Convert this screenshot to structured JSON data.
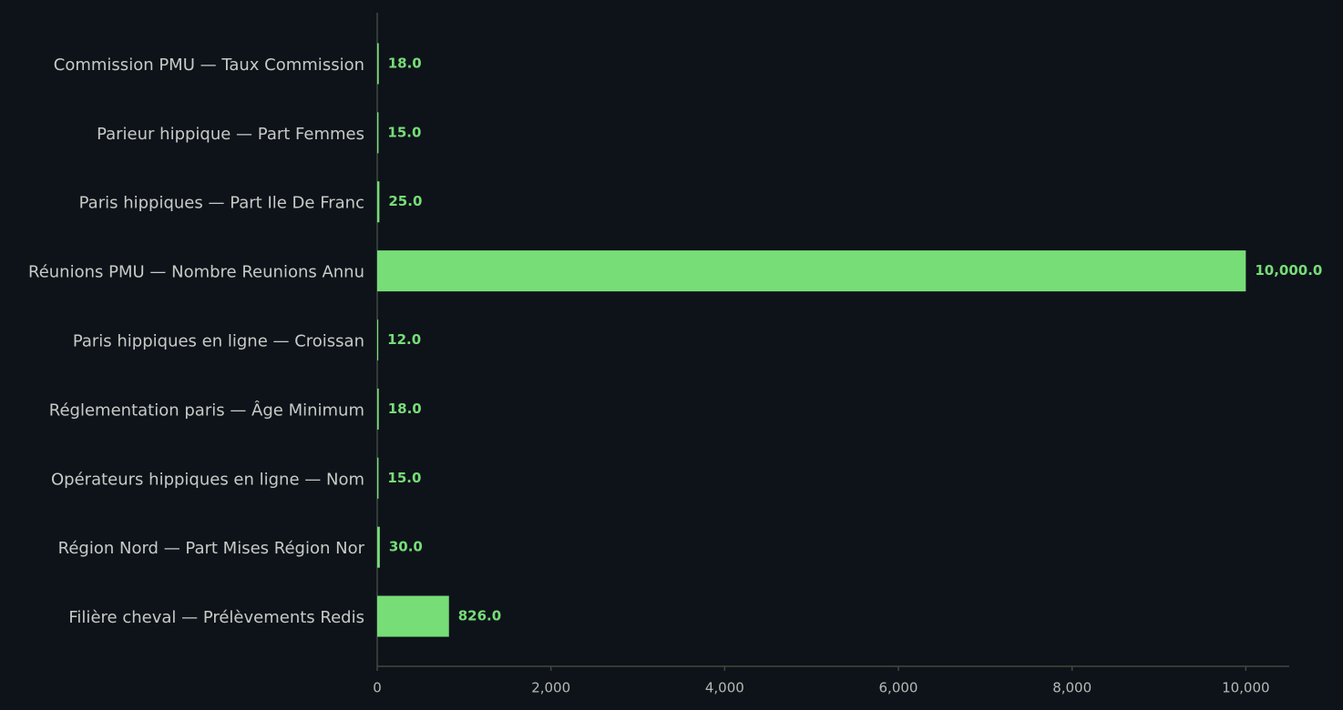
{
  "chart_data": {
    "type": "barh",
    "categories": [
      "Commission PMU — Taux Commission",
      "Parieur hippique — Part Femmes",
      "Paris hippiques — Part Ile De Franc",
      "Réunions PMU — Nombre Reunions Annu",
      "Paris hippiques en ligne — Croissan",
      "Réglementation paris — Âge Minimum",
      "Opérateurs hippiques en ligne — Nom",
      "Région Nord — Part Mises Région Nor",
      "Filière cheval — Prélèvements Redis"
    ],
    "values": [
      18,
      15,
      25,
      10000,
      12,
      18,
      15,
      30,
      826
    ],
    "value_labels": [
      "18.0",
      "15.0",
      "25.0",
      "10,000.0",
      "12.0",
      "18.0",
      "15.0",
      "30.0",
      "826.0"
    ],
    "color": "#77dd77",
    "xlim": [
      0,
      10500
    ],
    "xticks": [
      0,
      {
        "value": 2000,
        "label": "2,000"
      },
      {
        "value": 4000,
        "label": "4,000"
      },
      {
        "value": 6000,
        "label": "6,000"
      },
      {
        "value": 8000,
        "label": "8,000"
      },
      {
        "value": 10000,
        "label": "10,000"
      }
    ],
    "grid": false
  }
}
